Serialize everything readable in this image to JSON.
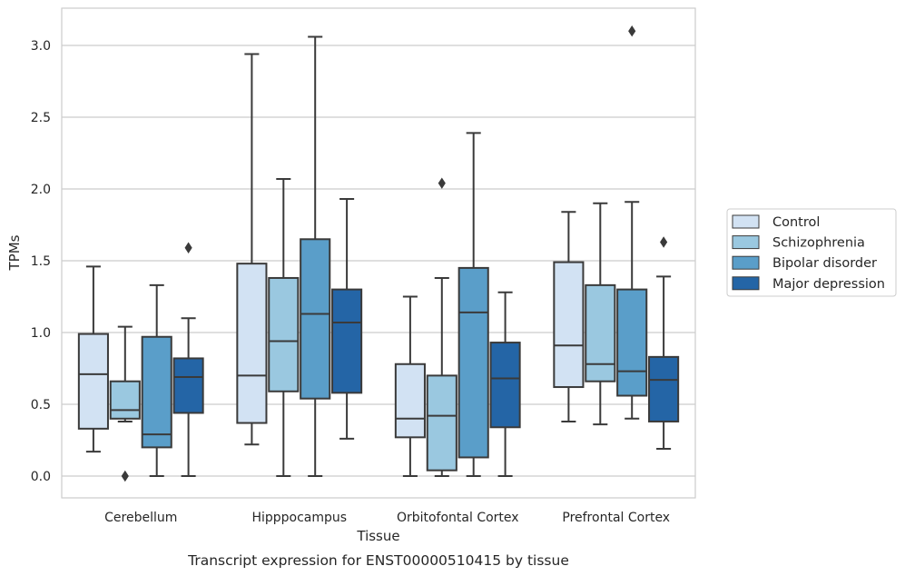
{
  "caption": "Transcript expression for ENST00000510415 by tissue",
  "chart_data": {
    "type": "box",
    "xlabel": "Tissue",
    "ylabel": "TPMs",
    "ylim": [
      -0.15,
      3.25
    ],
    "yticks": [
      "0.0",
      "0.5",
      "1.0",
      "1.5",
      "2.0",
      "2.5",
      "3.0"
    ],
    "grid": "horizontal",
    "legend_position": "right",
    "categories": [
      "Cerebellum",
      "Hipppocampus",
      "Orbitofontal Cortex",
      "Prefrontal Cortex"
    ],
    "series": [
      {
        "name": "Control",
        "color": "#d2e2f3",
        "boxes": [
          {
            "min": 0.17,
            "q1": 0.33,
            "median": 0.71,
            "q3": 0.99,
            "max": 1.46,
            "outliers": []
          },
          {
            "min": 0.22,
            "q1": 0.37,
            "median": 0.7,
            "q3": 1.48,
            "max": 2.94,
            "outliers": []
          },
          {
            "min": 0.0,
            "q1": 0.27,
            "median": 0.4,
            "q3": 0.78,
            "max": 1.25,
            "outliers": []
          },
          {
            "min": 0.38,
            "q1": 0.62,
            "median": 0.91,
            "q3": 1.49,
            "max": 1.84,
            "outliers": []
          }
        ]
      },
      {
        "name": "Schizophrenia",
        "color": "#9ac8e0",
        "boxes": [
          {
            "min": 0.38,
            "q1": 0.4,
            "median": 0.46,
            "q3": 0.66,
            "max": 1.04,
            "outliers": [
              0.0
            ]
          },
          {
            "min": 0.0,
            "q1": 0.59,
            "median": 0.94,
            "q3": 1.38,
            "max": 2.07,
            "outliers": []
          },
          {
            "min": 0.0,
            "q1": 0.04,
            "median": 0.42,
            "q3": 0.7,
            "max": 1.38,
            "outliers": [
              2.04
            ]
          },
          {
            "min": 0.36,
            "q1": 0.66,
            "median": 0.78,
            "q3": 1.33,
            "max": 1.9,
            "outliers": []
          }
        ]
      },
      {
        "name": "Bipolar disorder",
        "color": "#5a9ec9",
        "boxes": [
          {
            "min": 0.0,
            "q1": 0.2,
            "median": 0.29,
            "q3": 0.97,
            "max": 1.33,
            "outliers": []
          },
          {
            "min": 0.0,
            "q1": 0.54,
            "median": 1.13,
            "q3": 1.65,
            "max": 3.06,
            "outliers": []
          },
          {
            "min": 0.0,
            "q1": 0.13,
            "median": 1.14,
            "q3": 1.45,
            "max": 2.39,
            "outliers": []
          },
          {
            "min": 0.4,
            "q1": 0.56,
            "median": 0.73,
            "q3": 1.3,
            "max": 1.91,
            "outliers": [
              3.1
            ]
          }
        ]
      },
      {
        "name": "Major depression",
        "color": "#2465a6",
        "boxes": [
          {
            "min": 0.0,
            "q1": 0.44,
            "median": 0.69,
            "q3": 0.82,
            "max": 1.1,
            "outliers": [
              1.59
            ]
          },
          {
            "min": 0.26,
            "q1": 0.58,
            "median": 1.07,
            "q3": 1.3,
            "max": 1.93,
            "outliers": []
          },
          {
            "min": 0.0,
            "q1": 0.34,
            "median": 0.68,
            "q3": 0.93,
            "max": 1.28,
            "outliers": []
          },
          {
            "min": 0.19,
            "q1": 0.38,
            "median": 0.67,
            "q3": 0.83,
            "max": 1.39,
            "outliers": [
              1.63
            ]
          }
        ]
      }
    ]
  }
}
